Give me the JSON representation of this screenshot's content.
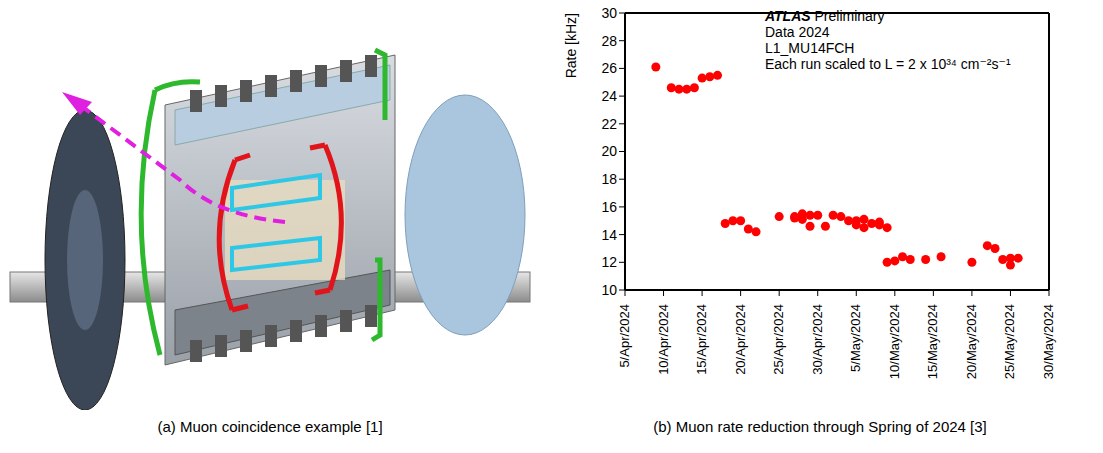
{
  "diagram": {
    "caption": "(a) Muon coincidence example [1]"
  },
  "chart_data": {
    "type": "scatter",
    "caption": "(b) Muon rate reduction through Spring of 2024 [3]",
    "y_label": "Rate [kHz]",
    "annotations": [
      "ATLAS Preliminary",
      "Data 2024",
      "L1_MU14FCH",
      "Each run scaled to L = 2 x 10³⁴ cm⁻²s⁻¹"
    ],
    "color": "#ff0000",
    "marker": "circle",
    "grid": false,
    "x": [
      "2024-04-09",
      "2024-04-11",
      "2024-04-12",
      "2024-04-13",
      "2024-04-14",
      "2024-04-15",
      "2024-04-16",
      "2024-04-17",
      "2024-04-18",
      "2024-04-19",
      "2024-04-20",
      "2024-04-21",
      "2024-04-22",
      "2024-04-25",
      "2024-04-27",
      "2024-04-27",
      "2024-04-28",
      "2024-04-28",
      "2024-04-29",
      "2024-04-29",
      "2024-04-30",
      "2024-05-01",
      "2024-05-02",
      "2024-05-03",
      "2024-05-04",
      "2024-05-05",
      "2024-05-05",
      "2024-05-06",
      "2024-05-06",
      "2024-05-07",
      "2024-05-08",
      "2024-05-08",
      "2024-05-09",
      "2024-05-09",
      "2024-05-10",
      "2024-05-11",
      "2024-05-12",
      "2024-05-14",
      "2024-05-16",
      "2024-05-20",
      "2024-05-22",
      "2024-05-23",
      "2024-05-24",
      "2024-05-25",
      "2024-05-25",
      "2024-05-26"
    ],
    "values": [
      26.1,
      24.6,
      24.5,
      24.5,
      24.6,
      25.3,
      25.4,
      25.5,
      14.8,
      15.0,
      15.0,
      14.4,
      14.2,
      15.3,
      15.3,
      15.2,
      15.5,
      15.1,
      15.4,
      14.6,
      15.4,
      14.6,
      15.4,
      15.3,
      15.0,
      14.7,
      15.0,
      14.5,
      15.1,
      14.8,
      14.9,
      14.7,
      14.5,
      12.0,
      12.1,
      12.4,
      12.2,
      12.2,
      12.4,
      12.0,
      13.2,
      13.0,
      12.2,
      12.3,
      11.8,
      12.3
    ],
    "xlim": [
      "2024-04-05",
      "2024-05-30"
    ],
    "xticks": [
      {
        "value": "2024-04-05",
        "label": "5/Apr/2024"
      },
      {
        "value": "2024-04-10",
        "label": "10/Apr/2024"
      },
      {
        "value": "2024-04-15",
        "label": "15/Apr/2024"
      },
      {
        "value": "2024-04-20",
        "label": "20/Apr/2024"
      },
      {
        "value": "2024-04-25",
        "label": "25/Apr/2024"
      },
      {
        "value": "2024-04-30",
        "label": "30/Apr/2024"
      },
      {
        "value": "2024-05-05",
        "label": "5/May/2024"
      },
      {
        "value": "2024-05-10",
        "label": "10/May/2024"
      },
      {
        "value": "2024-05-15",
        "label": "15/May/2024"
      },
      {
        "value": "2024-05-20",
        "label": "20/May/2024"
      },
      {
        "value": "2024-05-25",
        "label": "25/May/2024"
      },
      {
        "value": "2024-05-30",
        "label": "30/May/2024"
      }
    ],
    "ylim": [
      10,
      30
    ],
    "yticks": [
      10,
      12,
      14,
      16,
      18,
      20,
      22,
      24,
      26,
      28,
      30
    ]
  }
}
